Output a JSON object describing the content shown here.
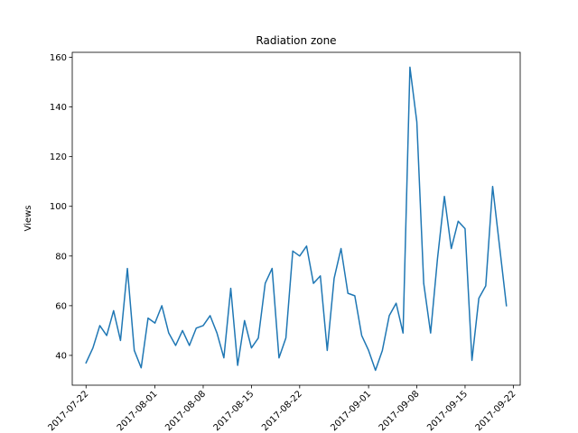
{
  "chart_data": {
    "type": "line",
    "title": "Radiation zone",
    "xlabel": "",
    "ylabel": "Views",
    "x_type": "date",
    "xlim": [
      "2017-07-20",
      "2017-09-23"
    ],
    "ylim": [
      28,
      162
    ],
    "x_ticks": [
      "2017-07-22",
      "2017-08-01",
      "2017-08-08",
      "2017-08-15",
      "2017-08-22",
      "2017-09-01",
      "2017-09-08",
      "2017-09-15",
      "2017-09-22"
    ],
    "y_ticks": [
      40,
      60,
      80,
      100,
      120,
      140,
      160
    ],
    "grid": false,
    "line_color": "#1f77b4",
    "series": [
      {
        "x": [
          "2017-07-22",
          "2017-07-23",
          "2017-07-24",
          "2017-07-25",
          "2017-07-26",
          "2017-07-27",
          "2017-07-28",
          "2017-07-29",
          "2017-07-30",
          "2017-07-31",
          "2017-08-01",
          "2017-08-02",
          "2017-08-03",
          "2017-08-04",
          "2017-08-05",
          "2017-08-06",
          "2017-08-07",
          "2017-08-08",
          "2017-08-09",
          "2017-08-10",
          "2017-08-11",
          "2017-08-12",
          "2017-08-13",
          "2017-08-14",
          "2017-08-15",
          "2017-08-16",
          "2017-08-17",
          "2017-08-18",
          "2017-08-19",
          "2017-08-20",
          "2017-08-21",
          "2017-08-22",
          "2017-08-23",
          "2017-08-24",
          "2017-08-25",
          "2017-08-26",
          "2017-08-27",
          "2017-08-28",
          "2017-08-29",
          "2017-08-30",
          "2017-08-31",
          "2017-09-01",
          "2017-09-02",
          "2017-09-03",
          "2017-09-04",
          "2017-09-05",
          "2017-09-06",
          "2017-09-07",
          "2017-09-08",
          "2017-09-09",
          "2017-09-10",
          "2017-09-11",
          "2017-09-12",
          "2017-09-13",
          "2017-09-14",
          "2017-09-15",
          "2017-09-16",
          "2017-09-17",
          "2017-09-18",
          "2017-09-19",
          "2017-09-20",
          "2017-09-21"
        ],
        "values": [
          37,
          43,
          52,
          48,
          58,
          46,
          75,
          42,
          35,
          55,
          53,
          60,
          49,
          44,
          50,
          44,
          51,
          52,
          56,
          49,
          39,
          67,
          36,
          54,
          43,
          47,
          69,
          75,
          39,
          47,
          82,
          80,
          84,
          69,
          72,
          42,
          71,
          83,
          65,
          64,
          48,
          42,
          34,
          42,
          56,
          61,
          49,
          156,
          134,
          69,
          49,
          79,
          104,
          83,
          94,
          91,
          38,
          63,
          68,
          108,
          84,
          60
        ]
      }
    ]
  }
}
